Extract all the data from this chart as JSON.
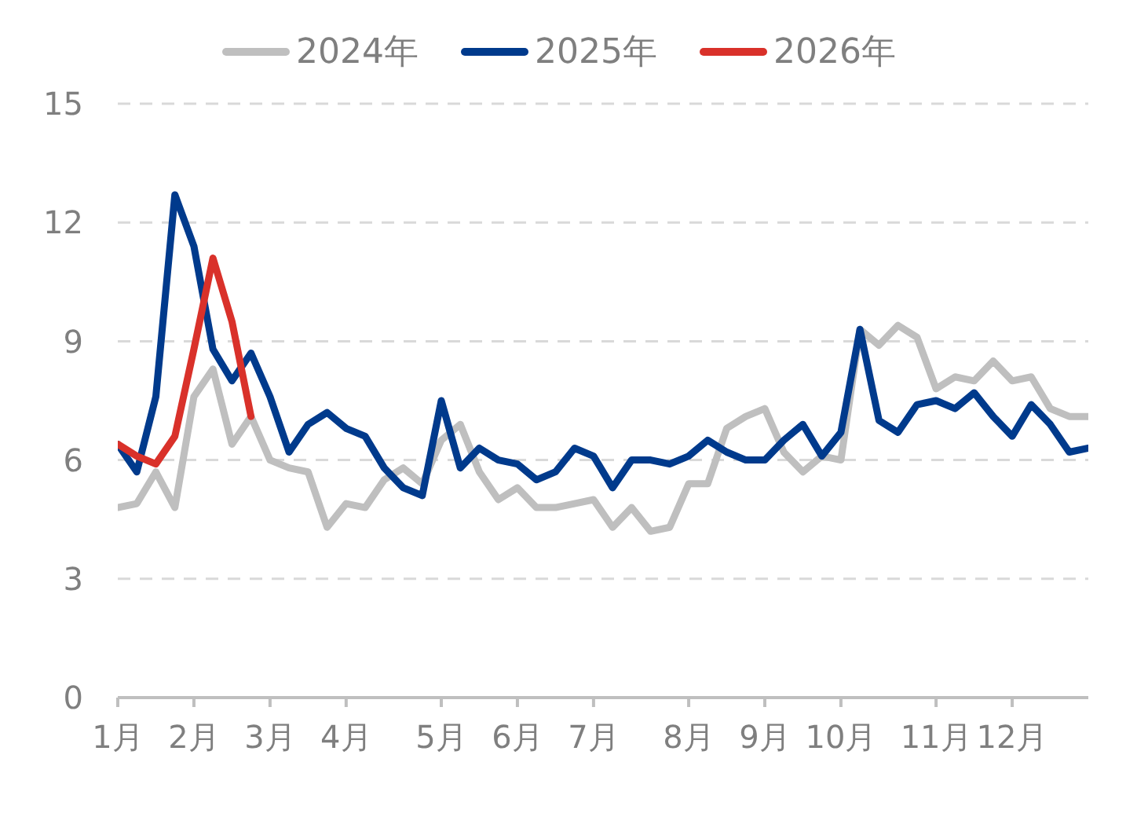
{
  "chart_data": {
    "type": "line",
    "categories": [
      "1月",
      null,
      null,
      null,
      "2月",
      null,
      null,
      null,
      "3月",
      null,
      null,
      null,
      "4月",
      null,
      null,
      null,
      null,
      "5月",
      null,
      null,
      null,
      "6月",
      null,
      null,
      null,
      "7月",
      null,
      null,
      null,
      null,
      "8月",
      null,
      null,
      null,
      "9月",
      null,
      null,
      null,
      "10月",
      null,
      null,
      null,
      null,
      "11月",
      null,
      null,
      null,
      "12月",
      null,
      null,
      null,
      null
    ],
    "series": [
      {
        "name": "2024年",
        "color": "#bfbfbf",
        "values": [
          4.8,
          4.9,
          5.7,
          4.8,
          7.6,
          8.3,
          6.4,
          7.1,
          6.0,
          5.8,
          5.7,
          4.3,
          4.9,
          4.8,
          5.5,
          5.8,
          5.4,
          6.5,
          6.9,
          5.7,
          5.0,
          5.3,
          4.8,
          4.8,
          4.9,
          5.0,
          4.3,
          4.8,
          4.2,
          4.3,
          5.4,
          5.4,
          6.8,
          7.1,
          7.3,
          6.2,
          5.7,
          6.1,
          6.0,
          9.3,
          8.9,
          9.4,
          9.1,
          7.8,
          8.1,
          8.0,
          8.5,
          8.0,
          8.1,
          7.3,
          7.1,
          7.1
        ]
      },
      {
        "name": "2025年",
        "color": "#003a8c",
        "values": [
          6.4,
          5.7,
          7.6,
          12.7,
          11.4,
          8.8,
          8.0,
          8.7,
          7.6,
          6.2,
          6.9,
          7.2,
          6.8,
          6.6,
          5.8,
          5.3,
          5.1,
          7.5,
          5.8,
          6.3,
          6.0,
          5.9,
          5.5,
          5.7,
          6.3,
          6.1,
          5.3,
          6.0,
          6.0,
          5.9,
          6.1,
          6.5,
          6.2,
          6.0,
          6.0,
          6.5,
          6.9,
          6.1,
          6.7,
          9.3,
          7.0,
          6.7,
          7.4,
          7.5,
          7.3,
          7.7,
          7.1,
          6.6,
          7.4,
          6.9,
          6.2,
          6.3
        ]
      },
      {
        "name": "2026年",
        "color": "#d9312a",
        "values": [
          6.4,
          6.1,
          5.9,
          6.6,
          8.8,
          11.1,
          9.5,
          7.1,
          null,
          null,
          null,
          null,
          null,
          null,
          null,
          null,
          null,
          null,
          null,
          null,
          null,
          null,
          null,
          null,
          null,
          null,
          null,
          null,
          null,
          null,
          null,
          null,
          null,
          null,
          null,
          null,
          null,
          null,
          null,
          null,
          null,
          null,
          null,
          null,
          null,
          null,
          null,
          null,
          null,
          null,
          null,
          null
        ]
      }
    ],
    "ylim": [
      0,
      15
    ],
    "yticks": [
      0,
      3,
      6,
      9,
      12,
      15
    ],
    "grid": "y",
    "legend": "top",
    "marker": "none",
    "line_style": "solid"
  }
}
